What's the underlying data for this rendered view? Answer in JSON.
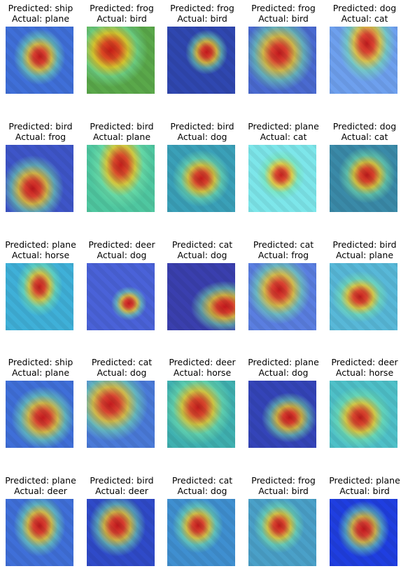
{
  "caption_prefix": {
    "predicted": "Predicted: ",
    "actual": "Actual: "
  },
  "grid": [
    [
      {
        "predicted": "ship",
        "actual": "plane",
        "hot": [
          0.5,
          0.45
        ],
        "spread": 0.45,
        "base": "#3f6fd8"
      },
      {
        "predicted": "frog",
        "actual": "bird",
        "hot": [
          0.35,
          0.35
        ],
        "spread": 0.5,
        "base": "#5aa84a"
      },
      {
        "predicted": "frog",
        "actual": "bird",
        "hot": [
          0.58,
          0.38
        ],
        "spread": 0.32,
        "base": "#2f47b0"
      },
      {
        "predicted": "frog",
        "actual": "bird",
        "hot": [
          0.45,
          0.4
        ],
        "spread": 0.55,
        "base": "#4a6ad0"
      },
      {
        "predicted": "dog",
        "actual": "cat",
        "hot": [
          0.55,
          0.25
        ],
        "spread": 0.45,
        "base": "#6ea0ee"
      }
    ],
    [
      {
        "predicted": "bird",
        "actual": "frog",
        "hot": [
          0.4,
          0.65
        ],
        "spread": 0.45,
        "base": "#3e55c8"
      },
      {
        "predicted": "bird",
        "actual": "plane",
        "hot": [
          0.5,
          0.3
        ],
        "spread": 0.55,
        "base": "#4fc7a0"
      },
      {
        "predicted": "bird",
        "actual": "dog",
        "hot": [
          0.5,
          0.5
        ],
        "spread": 0.5,
        "base": "#3aa0b8"
      },
      {
        "predicted": "plane",
        "actual": "cat",
        "hot": [
          0.48,
          0.45
        ],
        "spread": 0.4,
        "base": "#7de6ea"
      },
      {
        "predicted": "dog",
        "actual": "cat",
        "hot": [
          0.55,
          0.45
        ],
        "spread": 0.45,
        "base": "#3a8aa8"
      }
    ],
    [
      {
        "predicted": "plane",
        "actual": "horse",
        "hot": [
          0.5,
          0.35
        ],
        "spread": 0.4,
        "base": "#3fb0d8"
      },
      {
        "predicted": "deer",
        "actual": "dog",
        "hot": [
          0.62,
          0.6
        ],
        "spread": 0.25,
        "base": "#4a62d8"
      },
      {
        "predicted": "cat",
        "actual": "dog",
        "hot": [
          0.85,
          0.65
        ],
        "spread": 0.35,
        "base": "#3a3fae"
      },
      {
        "predicted": "cat",
        "actual": "frog",
        "hot": [
          0.45,
          0.4
        ],
        "spread": 0.5,
        "base": "#5a7ee0"
      },
      {
        "predicted": "bird",
        "actual": "plane",
        "hot": [
          0.45,
          0.5
        ],
        "spread": 0.45,
        "base": "#58b8d8"
      }
    ],
    [
      {
        "predicted": "ship",
        "actual": "plane",
        "hot": [
          0.55,
          0.55
        ],
        "spread": 0.5,
        "base": "#3f6fd8"
      },
      {
        "predicted": "cat",
        "actual": "dog",
        "hot": [
          0.35,
          0.35
        ],
        "spread": 0.5,
        "base": "#4a7ad8"
      },
      {
        "predicted": "deer",
        "actual": "horse",
        "hot": [
          0.45,
          0.4
        ],
        "spread": 0.55,
        "base": "#3fb0b0"
      },
      {
        "predicted": "plane",
        "actual": "dog",
        "hot": [
          0.6,
          0.55
        ],
        "spread": 0.4,
        "base": "#3444b8"
      },
      {
        "predicted": "deer",
        "actual": "horse",
        "hot": [
          0.45,
          0.55
        ],
        "spread": 0.5,
        "base": "#4ec0c8"
      }
    ],
    [
      {
        "predicted": "plane",
        "actual": "deer",
        "hot": [
          0.5,
          0.4
        ],
        "spread": 0.45,
        "base": "#3f6fd8"
      },
      {
        "predicted": "bird",
        "actual": "deer",
        "hot": [
          0.45,
          0.4
        ],
        "spread": 0.45,
        "base": "#2f4ac8"
      },
      {
        "predicted": "cat",
        "actual": "dog",
        "hot": [
          0.45,
          0.4
        ],
        "spread": 0.4,
        "base": "#3f8fd0"
      },
      {
        "predicted": "frog",
        "actual": "bird",
        "hot": [
          0.45,
          0.4
        ],
        "spread": 0.4,
        "base": "#4aa0c8"
      },
      {
        "predicted": "plane",
        "actual": "bird",
        "hot": [
          0.5,
          0.45
        ],
        "spread": 0.45,
        "base": "#1f3ee0"
      }
    ]
  ]
}
